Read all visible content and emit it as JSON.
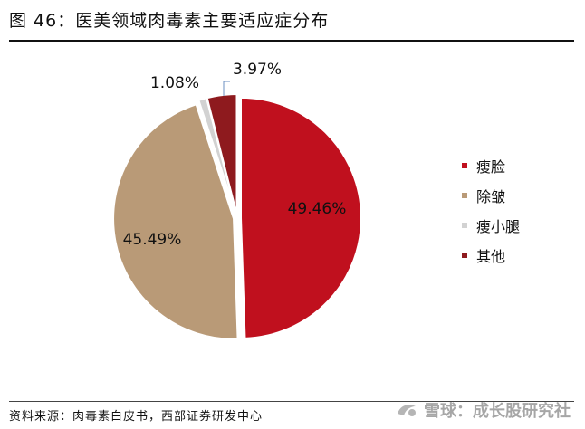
{
  "figure": {
    "title": "图 46：医美领域肉毒素主要适应症分布",
    "source": "资料来源：肉毒素白皮书，西部证券研发中心",
    "watermark_text": "雪球：成长股研究社"
  },
  "chart_data": {
    "type": "pie",
    "title": "",
    "slices": [
      {
        "name": "瘦脸",
        "value": 49.46,
        "label": "49.46%",
        "color": "#c0101e"
      },
      {
        "name": "除皱",
        "value": 45.49,
        "label": "45.49%",
        "color": "#b99a77"
      },
      {
        "name": "瘦小腿",
        "value": 1.08,
        "label": "1.08%",
        "color": "#d2d2d2"
      },
      {
        "name": "其他",
        "value": 3.97,
        "label": "3.97%",
        "color": "#8e1a1e"
      }
    ],
    "start": "12 o'clock",
    "direction": "clockwise",
    "legend_position": "right",
    "leader_line_color": "#6b8fc2"
  }
}
